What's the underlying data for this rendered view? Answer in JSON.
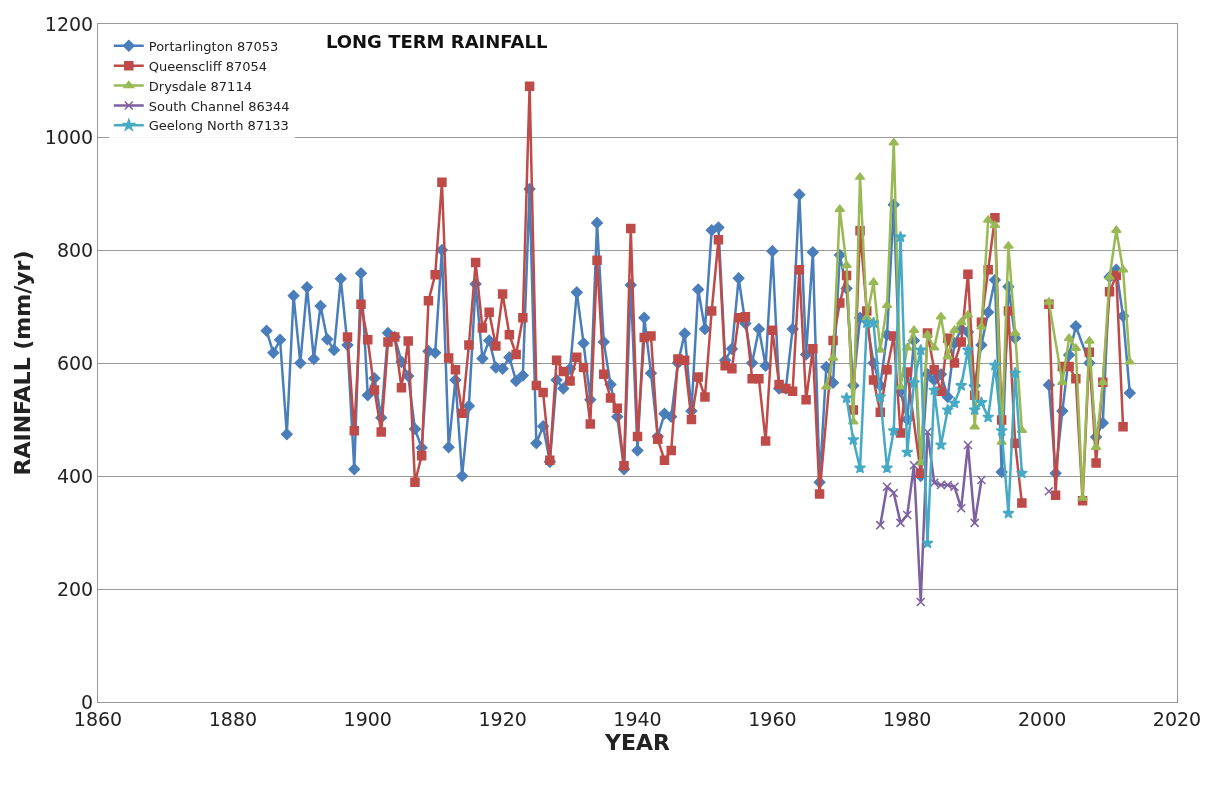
{
  "chart_data": {
    "type": "line",
    "title": "LONG TERM RAINFALL",
    "xlabel": "YEAR",
    "ylabel": "RAINFALL (mm/yr)",
    "xlim": [
      1860,
      2020
    ],
    "xticks": [
      1860,
      1880,
      1900,
      1920,
      1940,
      1960,
      1980,
      2000,
      2020
    ],
    "ylim": [
      0,
      1200
    ],
    "yticks": [
      0,
      200,
      400,
      600,
      800,
      1000,
      1200
    ],
    "grid": "y",
    "legend": "top left",
    "series": [
      {
        "name": "Portarlington 87053",
        "color": "#4a7ebb",
        "marker": "diamond",
        "x": [
          1885,
          1886,
          1887,
          1888,
          1889,
          1890,
          1891,
          1892,
          1893,
          1894,
          1895,
          1896,
          1897,
          1898,
          1899,
          1900,
          1901,
          1902,
          1903,
          1904,
          1905,
          1906,
          1907,
          1908,
          1909,
          1910,
          1911,
          1912,
          1913,
          1914,
          1915,
          1916,
          1917,
          1918,
          1919,
          1920,
          1921,
          1922,
          1923,
          1924,
          1925,
          1926,
          1927,
          1928,
          1929,
          1930,
          1931,
          1932,
          1933,
          1934,
          1935,
          1936,
          1937,
          1938,
          1939,
          1940,
          1941,
          1942,
          1943,
          1944,
          1945,
          1946,
          1947,
          1948,
          1949,
          1950,
          1951,
          1952,
          1953,
          1954,
          1955,
          1956,
          1957,
          1958,
          1959,
          1960,
          1961,
          1962,
          1963,
          1964,
          1965,
          1966,
          1967,
          1968,
          1969,
          1970,
          1971,
          1972,
          1973,
          1974,
          1975,
          1976,
          1977,
          1978,
          1979,
          1980,
          1981,
          1982,
          1983,
          1984,
          1985,
          1986,
          1987,
          1988,
          1989,
          1990,
          1991,
          1992,
          1993,
          1994,
          1995,
          1996,
          1999,
          2001,
          2002,
          2003,
          2004,
          2005,
          2007,
          2008,
          2009,
          2010,
          2011,
          2012,
          2013
        ],
        "values": [
          657,
          618,
          641,
          474,
          719,
          600,
          734,
          607,
          701,
          642,
          623,
          749,
          632,
          412,
          759,
          543,
          573,
          503,
          653,
          646,
          602,
          577,
          483,
          450,
          621,
          618,
          800,
          451,
          570,
          400,
          524,
          740,
          608,
          640,
          592,
          590,
          610,
          568,
          578,
          908,
          458,
          488,
          425,
          570,
          555,
          590,
          725,
          635,
          535,
          848,
          637,
          562,
          505,
          412,
          738,
          445,
          680,
          582,
          470,
          510,
          505,
          600,
          652,
          515,
          730,
          660,
          835,
          840,
          605,
          625,
          750,
          670,
          600,
          660,
          595,
          798,
          555,
          555,
          660,
          898,
          615,
          796,
          389,
          593,
          565,
          791,
          732,
          560,
          680,
          675,
          600,
          560,
          650,
          880,
          550,
          500,
          640,
          400,
          580,
          570,
          580,
          540,
          635,
          660,
          655,
          560,
          632,
          690,
          747,
          407,
          735,
          644,
          null,
          561,
          405,
          515,
          614,
          665,
          600,
          469,
          494,
          752,
          765,
          683,
          547
        ]
      },
      {
        "name": "Queenscliff 87054",
        "color": "#be4b48",
        "marker": "square",
        "x": [
          1897,
          1898,
          1899,
          1900,
          1901,
          1902,
          1903,
          1904,
          1905,
          1906,
          1907,
          1908,
          1909,
          1910,
          1911,
          1912,
          1913,
          1914,
          1915,
          1916,
          1917,
          1918,
          1919,
          1920,
          1921,
          1922,
          1923,
          1924,
          1925,
          1926,
          1927,
          1928,
          1929,
          1930,
          1931,
          1932,
          1933,
          1934,
          1935,
          1936,
          1937,
          1938,
          1939,
          1940,
          1941,
          1942,
          1943,
          1944,
          1945,
          1946,
          1947,
          1948,
          1949,
          1950,
          1951,
          1952,
          1953,
          1954,
          1955,
          1956,
          1957,
          1958,
          1959,
          1960,
          1961,
          1962,
          1963,
          1964,
          1965,
          1966,
          1967,
          1969,
          1970,
          1971,
          1972,
          1973,
          1974,
          1975,
          1976,
          1977,
          1978,
          1979,
          1980,
          1982,
          1983,
          1984,
          1985,
          1986,
          1987,
          1988,
          1989,
          1990,
          1991,
          1992,
          1993,
          1994,
          1995,
          1996,
          1997,
          1999,
          2001,
          2002,
          2003,
          2004,
          2005,
          2006,
          2007,
          2008,
          2009,
          2010,
          2011,
          2012
        ],
        "values": [
          646,
          480,
          704,
          641,
          552,
          478,
          637,
          646,
          556,
          639,
          389,
          436,
          710,
          756,
          920,
          609,
          588,
          511,
          632,
          778,
          662,
          690,
          630,
          722,
          650,
          615,
          680,
          1090,
          560,
          548,
          428,
          605,
          585,
          568,
          610,
          592,
          492,
          782,
          580,
          538,
          520,
          418,
          838,
          470,
          645,
          648,
          465,
          428,
          445,
          607,
          605,
          500,
          575,
          540,
          692,
          818,
          595,
          590,
          680,
          682,
          572,
          572,
          462,
          658,
          562,
          555,
          550,
          765,
          535,
          625,
          368,
          640,
          706,
          755,
          517,
          834,
          692,
          570,
          513,
          588,
          648,
          476,
          584,
          405,
          653,
          588,
          550,
          644,
          600,
          637,
          757,
          543,
          672,
          765,
          857,
          499,
          692,
          458,
          352,
          null,
          704,
          366,
          594,
          594,
          572,
          356,
          619,
          423,
          566,
          726,
          755,
          487
        ]
      },
      {
        "name": "Drysdale 87114",
        "color": "#98b954",
        "marker": "triangle",
        "x": [
          1968,
          1969,
          1970,
          1971,
          1972,
          1973,
          1974,
          1975,
          1976,
          1977,
          1978,
          1979,
          1980,
          1981,
          1982,
          1983,
          1984,
          1985,
          1986,
          1987,
          1988,
          1989,
          1990,
          1991,
          1992,
          1993,
          1994,
          1995,
          1996,
          1997,
          1999,
          2001,
          2003,
          2004,
          2005,
          2006,
          2007,
          2008,
          2009,
          2010,
          2011,
          2012,
          2013
        ],
        "values": [
          558,
          609,
          872,
          773,
          496,
          929,
          680,
          743,
          623,
          702,
          990,
          558,
          627,
          658,
          424,
          650,
          627,
          682,
          611,
          658,
          672,
          685,
          487,
          664,
          853,
          844,
          460,
          807,
          653,
          481,
          null,
          708,
          566,
          644,
          626,
          361,
          639,
          451,
          566,
          752,
          835,
          765,
          602
        ]
      },
      {
        "name": "South Channel 86344",
        "color": "#7d60a0",
        "marker": "cross",
        "x": [
          1976,
          1977,
          1978,
          1979,
          1980,
          1981,
          1982,
          1983,
          1984,
          1985,
          1986,
          1987,
          1988,
          1989,
          1990,
          1991,
          1999,
          2001
        ],
        "values": [
          313,
          381,
          370,
          317,
          331,
          419,
          177,
          478,
          388,
          384,
          384,
          381,
          343,
          455,
          317,
          393,
          null,
          373
        ]
      },
      {
        "name": "Geelong North 87133",
        "color": "#46aac5",
        "marker": "star",
        "x": [
          1971,
          1972,
          1973,
          1974,
          1975,
          1976,
          1977,
          1978,
          1979,
          1980,
          1981,
          1982,
          1983,
          1984,
          1985,
          1986,
          1987,
          1988,
          1989,
          1990,
          1991,
          1992,
          1993,
          1994,
          1995,
          1996,
          1997
        ],
        "values": [
          538,
          464,
          414,
          671,
          671,
          540,
          414,
          480,
          823,
          442,
          565,
          623,
          281,
          552,
          455,
          517,
          529,
          560,
          623,
          517,
          530,
          504,
          596,
          480,
          334,
          582,
          405
        ]
      }
    ]
  }
}
